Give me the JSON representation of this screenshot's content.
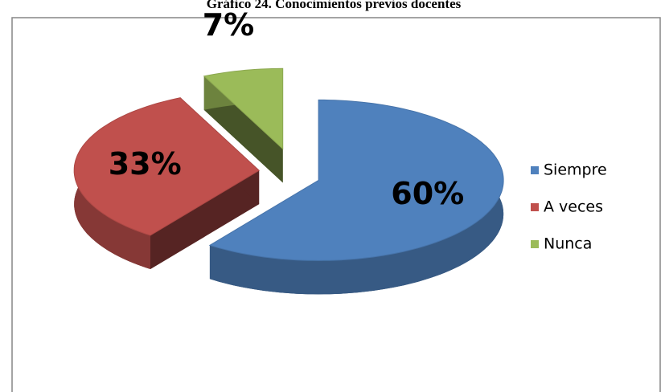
{
  "chart_data": {
    "type": "pie",
    "title": "Gráfico 24. Conocimientos previos docentes",
    "categories": [
      "Siempre",
      "A veces",
      "Nunca"
    ],
    "values": [
      60,
      33,
      7
    ],
    "value_labels": [
      "60%",
      "33%",
      "7%"
    ],
    "colors": [
      "#4f81bd",
      "#c0504d",
      "#9bbb59"
    ],
    "legend": "right"
  }
}
